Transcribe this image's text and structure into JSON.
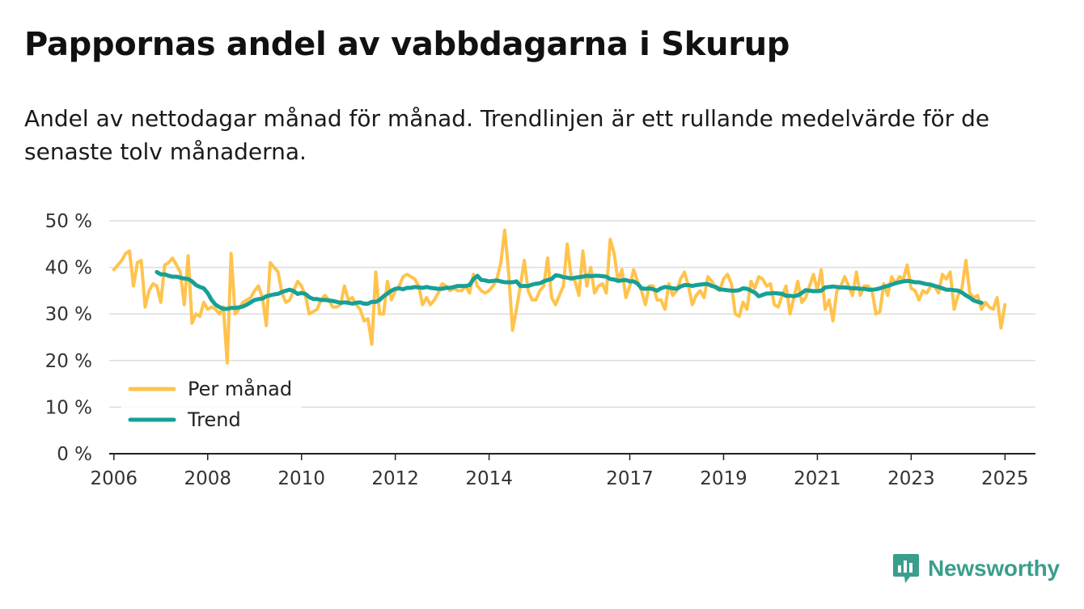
{
  "title": "Pappornas andel av vabbdagarna i Skurup",
  "subtitle": "Andel av nettodagar månad för månad. Trendlinjen är ett rullande medelvärde för de senaste tolv månaderna.",
  "logo_text": "Newsworthy",
  "colors": {
    "monthly": "#ffc34d",
    "trend": "#17a096",
    "grid": "#dddddd",
    "axis": "#222222",
    "logo": "#3a9e8c"
  },
  "chart_data": {
    "type": "line",
    "title": "Pappornas andel av vabbdagarna i Skurup",
    "xlabel": "",
    "ylabel": "",
    "ylim": [
      0,
      50
    ],
    "xlim": [
      2005.9,
      2025.65
    ],
    "y_ticks": [
      0,
      10,
      20,
      30,
      40,
      50
    ],
    "y_tick_labels": [
      "0 %",
      "10 %",
      "20 %",
      "30 %",
      "40 %",
      "50 %"
    ],
    "x_ticks": [
      2006,
      2008,
      2010,
      2012,
      2014,
      2017,
      2019,
      2021,
      2023,
      2025
    ],
    "x_tick_labels": [
      "2006",
      "2008",
      "2010",
      "2012",
      "2014",
      "2017",
      "2019",
      "2021",
      "2023",
      "2025"
    ],
    "legend": {
      "position": "bottom-left",
      "entries": [
        "Per månad",
        "Trend"
      ]
    },
    "series": [
      {
        "name": "Per månad",
        "start": 2006.0,
        "step": 0.08333,
        "values": [
          39.5,
          40.5,
          41.5,
          43,
          43.5,
          36,
          41,
          41.5,
          31.5,
          35,
          36.5,
          36,
          32.5,
          40.5,
          41,
          42,
          40.5,
          39,
          32,
          42.5,
          28,
          30,
          29.5,
          32.5,
          31,
          31.5,
          31,
          30,
          31.5,
          19.5,
          43,
          30,
          31,
          32.5,
          33,
          33.5,
          35,
          36,
          33.5,
          27.5,
          41,
          40,
          39,
          34.5,
          32.5,
          33,
          35,
          37,
          36,
          34,
          30,
          30.5,
          31,
          33,
          34,
          33,
          31.5,
          31.5,
          32,
          36,
          33,
          33.5,
          32,
          31,
          28.5,
          29,
          23.5,
          39,
          30,
          30,
          37,
          33,
          35,
          36,
          38,
          38.5,
          38,
          37.5,
          36,
          32,
          33.5,
          32,
          33,
          34.5,
          36.5,
          36,
          35,
          35.5,
          35,
          35,
          36,
          34.5,
          38.5,
          36,
          35,
          34.5,
          35,
          36,
          37.5,
          41,
          48,
          39,
          26.5,
          31,
          36,
          41.5,
          35,
          33,
          33,
          35,
          36,
          42,
          33.5,
          32,
          34,
          36,
          45,
          38,
          37,
          34,
          43.5,
          36,
          40,
          34.5,
          36,
          36.5,
          34.5,
          46,
          43,
          37,
          39.5,
          33.5,
          36,
          39.5,
          37,
          35,
          32,
          36,
          36,
          33,
          33,
          31,
          36.5,
          34,
          35,
          37.5,
          39,
          36,
          32,
          34,
          35,
          33.5,
          38,
          37,
          35.5,
          35,
          37.5,
          38.5,
          36.5,
          30,
          29.5,
          32.5,
          31,
          37,
          35.5,
          38,
          37.5,
          36,
          36.5,
          32,
          31.5,
          34,
          36,
          30,
          33.5,
          37,
          32.5,
          33.5,
          36,
          38.5,
          35,
          39.5,
          31,
          33,
          28.5,
          35,
          36,
          38,
          36,
          34,
          39,
          34,
          36,
          36,
          35,
          30,
          30.5,
          36.5,
          34,
          38,
          36.5,
          38,
          37.5,
          40.5,
          35.5,
          35,
          33,
          35,
          34.5,
          36,
          36,
          34.5,
          38.5,
          37.5,
          39,
          31,
          34,
          35.5,
          41.5,
          34.5,
          33.5,
          34,
          31,
          32.5,
          31.5,
          31,
          33.5,
          27,
          32
        ]
      },
      {
        "name": "Trend",
        "start": 2006.9167,
        "step": 0.08333,
        "values": [
          39,
          38.5,
          38.5,
          38.2,
          38,
          38,
          37.8,
          37.6,
          37.5,
          37,
          36.2,
          35.8,
          35.5,
          34.5,
          33,
          32,
          31.5,
          31.1,
          31.1,
          31.3,
          31.3,
          31.4,
          31.6,
          32,
          32.5,
          33,
          33.2,
          33.3,
          33.8,
          34,
          34.2,
          34.3,
          34.7,
          35,
          35.2,
          34.9,
          34.3,
          34.5,
          34.3,
          33.6,
          33.2,
          33.2,
          33,
          33,
          32.9,
          32.8,
          32.6,
          32.4,
          32.5,
          32.4,
          32.2,
          32.4,
          32.5,
          32.2,
          32.2,
          32.6,
          32.6,
          33,
          33.8,
          34.4,
          35,
          35.4,
          35.5,
          35.3,
          35.6,
          35.6,
          35.8,
          35.7,
          35.6,
          35.8,
          35.6,
          35.5,
          35.4,
          35.4,
          35.6,
          35.6,
          35.8,
          36,
          36,
          36,
          36.2,
          37.5,
          38.2,
          37.3,
          37.2,
          37,
          37.1,
          37.2,
          37,
          36.8,
          36.8,
          36.8,
          37,
          36,
          36,
          36,
          36.3,
          36.5,
          36.6,
          37,
          37.3,
          37.5,
          38.3,
          38.2,
          37.9,
          37.8,
          37.6,
          37.8,
          37.9,
          38,
          38.2,
          38.1,
          38.2,
          38.2,
          38.1,
          38,
          37.5,
          37.4,
          37.1,
          37.2,
          37.3,
          37,
          37,
          36.5,
          35.5,
          35.4,
          35.5,
          35.3,
          35,
          35.5,
          35.8,
          35.7,
          35.5,
          35.4,
          35.9,
          36.2,
          36.2,
          36,
          36.2,
          36.3,
          36.4,
          36.4,
          36,
          35.8,
          35.3,
          35.2,
          35.1,
          35,
          35,
          35.1,
          35.5,
          35.4,
          35,
          34.6,
          33.8,
          34.1,
          34.4,
          34.4,
          34.5,
          34.4,
          34.3,
          33.9,
          33.9,
          33.8,
          34,
          34.5,
          35.1,
          35,
          34.9,
          34.9,
          35,
          35.7,
          35.8,
          35.9,
          35.8,
          35.7,
          35.7,
          35.6,
          35.5,
          35.5,
          35.4,
          35.4,
          35.2,
          35.2,
          35.3,
          35.5,
          35.8,
          36,
          36.3,
          36.6,
          36.8,
          37,
          37.1,
          37,
          36.8,
          36.8,
          36.6,
          36.4,
          36.3,
          36,
          35.8,
          35.5,
          35.2,
          35.2,
          35.1,
          35,
          34.6,
          34,
          33.5,
          32.9,
          32.6,
          32.4
        ]
      }
    ]
  }
}
